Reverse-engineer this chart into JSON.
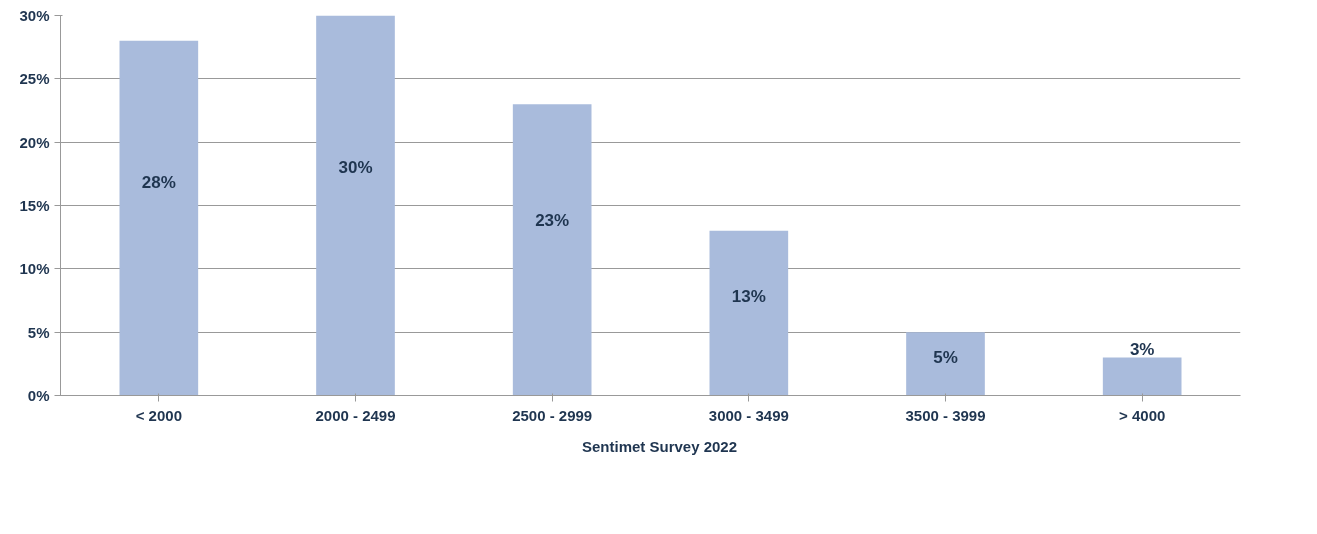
{
  "chart_data": {
    "type": "bar",
    "categories": [
      "< 2000",
      "2000 - 2499",
      "2500 - 2999",
      "3000 - 3499",
      "3500 - 3999",
      "> 4000"
    ],
    "series": [
      {
        "name": "Sentimet Survey 2022",
        "color": "#a9bbdc",
        "values": [
          28,
          30,
          23,
          13,
          5,
          3
        ]
      }
    ],
    "ylim": [
      0,
      30
    ],
    "yticks": [
      {
        "value": 0,
        "label": "0%"
      },
      {
        "value": 5,
        "label": "5%"
      },
      {
        "value": 10,
        "label": "10%"
      },
      {
        "value": 15,
        "label": "15%"
      },
      {
        "value": 20,
        "label": "20%"
      },
      {
        "value": 25,
        "label": "25%"
      },
      {
        "value": 30,
        "label": "30%"
      }
    ],
    "value_labels": [
      "28%",
      "30%",
      "23%",
      "13%",
      "5%",
      "3%"
    ],
    "grid": "y",
    "legend": "bottom"
  }
}
